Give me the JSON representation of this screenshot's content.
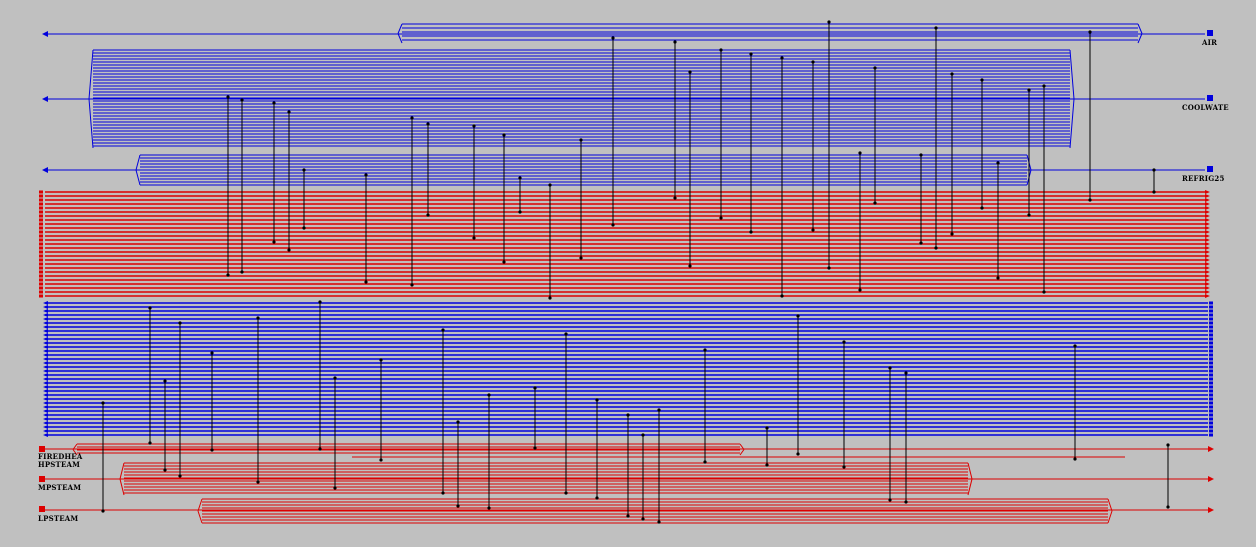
{
  "diagram": {
    "utilities": {
      "air": {
        "label": "AIR",
        "color": "#0000dd"
      },
      "coolwater": {
        "label": "COOLWATE",
        "color": "#0000dd"
      },
      "refrigerant": {
        "label": "REFRIG25",
        "color": "#0000dd"
      },
      "hp_steam": {
        "label": "HPSTEAM",
        "color": "#dd0000"
      },
      "mp_steam": {
        "label": "MPSTEAM",
        "color": "#dd0000"
      },
      "lp_steam": {
        "label": "LPSTEAM",
        "color": "#dd0000"
      },
      "fired_heat": {
        "label": "FIREDHEA",
        "color": "#dd0000"
      }
    },
    "colors": {
      "background": "#c0c0c0",
      "cold": "#0000dd",
      "hot": "#dd0000",
      "link": "#000000"
    },
    "hot_stream_count": 27,
    "cold_stream_count": 34
  }
}
